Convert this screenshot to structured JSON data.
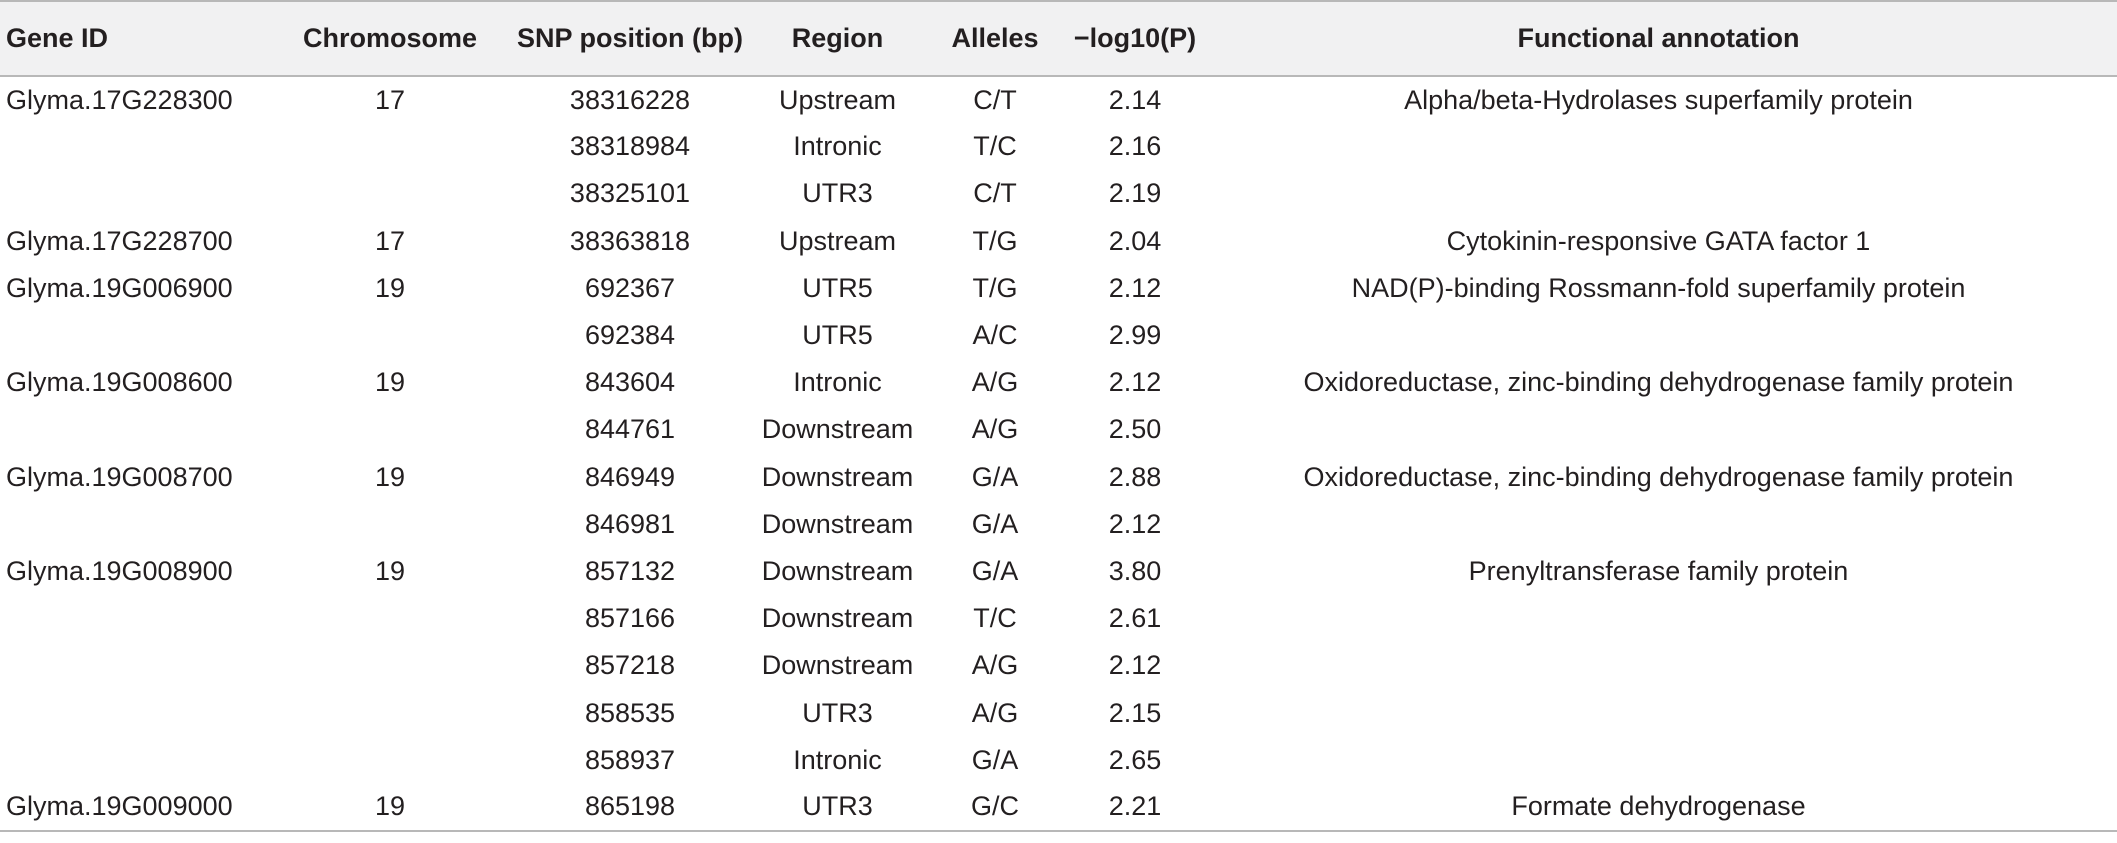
{
  "table": {
    "headers": [
      "Gene ID",
      "Chromosome",
      "SNP position (bp)",
      "Region",
      "Alleles",
      "−log10(P)",
      "Functional annotation"
    ],
    "rows": [
      [
        "Glyma.17G228300",
        "17",
        "38316228",
        "Upstream",
        "C/T",
        "2.14",
        "Alpha/beta-Hydrolases superfamily protein"
      ],
      [
        "",
        "",
        "38318984",
        "Intronic",
        "T/C",
        "2.16",
        ""
      ],
      [
        "",
        "",
        "38325101",
        "UTR3",
        "C/T",
        "2.19",
        ""
      ],
      [
        "Glyma.17G228700",
        "17",
        "38363818",
        "Upstream",
        "T/G",
        "2.04",
        "Cytokinin-responsive GATA factor 1"
      ],
      [
        "Glyma.19G006900",
        "19",
        "692367",
        "UTR5",
        "T/G",
        "2.12",
        "NAD(P)-binding Rossmann-fold superfamily protein"
      ],
      [
        "",
        "",
        "692384",
        "UTR5",
        "A/C",
        "2.99",
        ""
      ],
      [
        "Glyma.19G008600",
        "19",
        "843604",
        "Intronic",
        "A/G",
        "2.12",
        "Oxidoreductase, zinc-binding dehydrogenase family protein"
      ],
      [
        "",
        "",
        "844761",
        "Downstream",
        "A/G",
        "2.50",
        ""
      ],
      [
        "Glyma.19G008700",
        "19",
        "846949",
        "Downstream",
        "G/A",
        "2.88",
        "Oxidoreductase, zinc-binding dehydrogenase family protein"
      ],
      [
        "",
        "",
        "846981",
        "Downstream",
        "G/A",
        "2.12",
        ""
      ],
      [
        "Glyma.19G008900",
        "19",
        "857132",
        "Downstream",
        "G/A",
        "3.80",
        "Prenyltransferase family protein"
      ],
      [
        "",
        "",
        "857166",
        "Downstream",
        "T/C",
        "2.61",
        ""
      ],
      [
        "",
        "",
        "857218",
        "Downstream",
        "A/G",
        "2.12",
        ""
      ],
      [
        "",
        "",
        "858535",
        "UTR3",
        "A/G",
        "2.15",
        ""
      ],
      [
        "",
        "",
        "858937",
        "Intronic",
        "G/A",
        "2.65",
        ""
      ],
      [
        "Glyma.19G009000",
        "19",
        "865198",
        "UTR3",
        "G/C",
        "2.21",
        "Formate dehydrogenase"
      ]
    ]
  }
}
